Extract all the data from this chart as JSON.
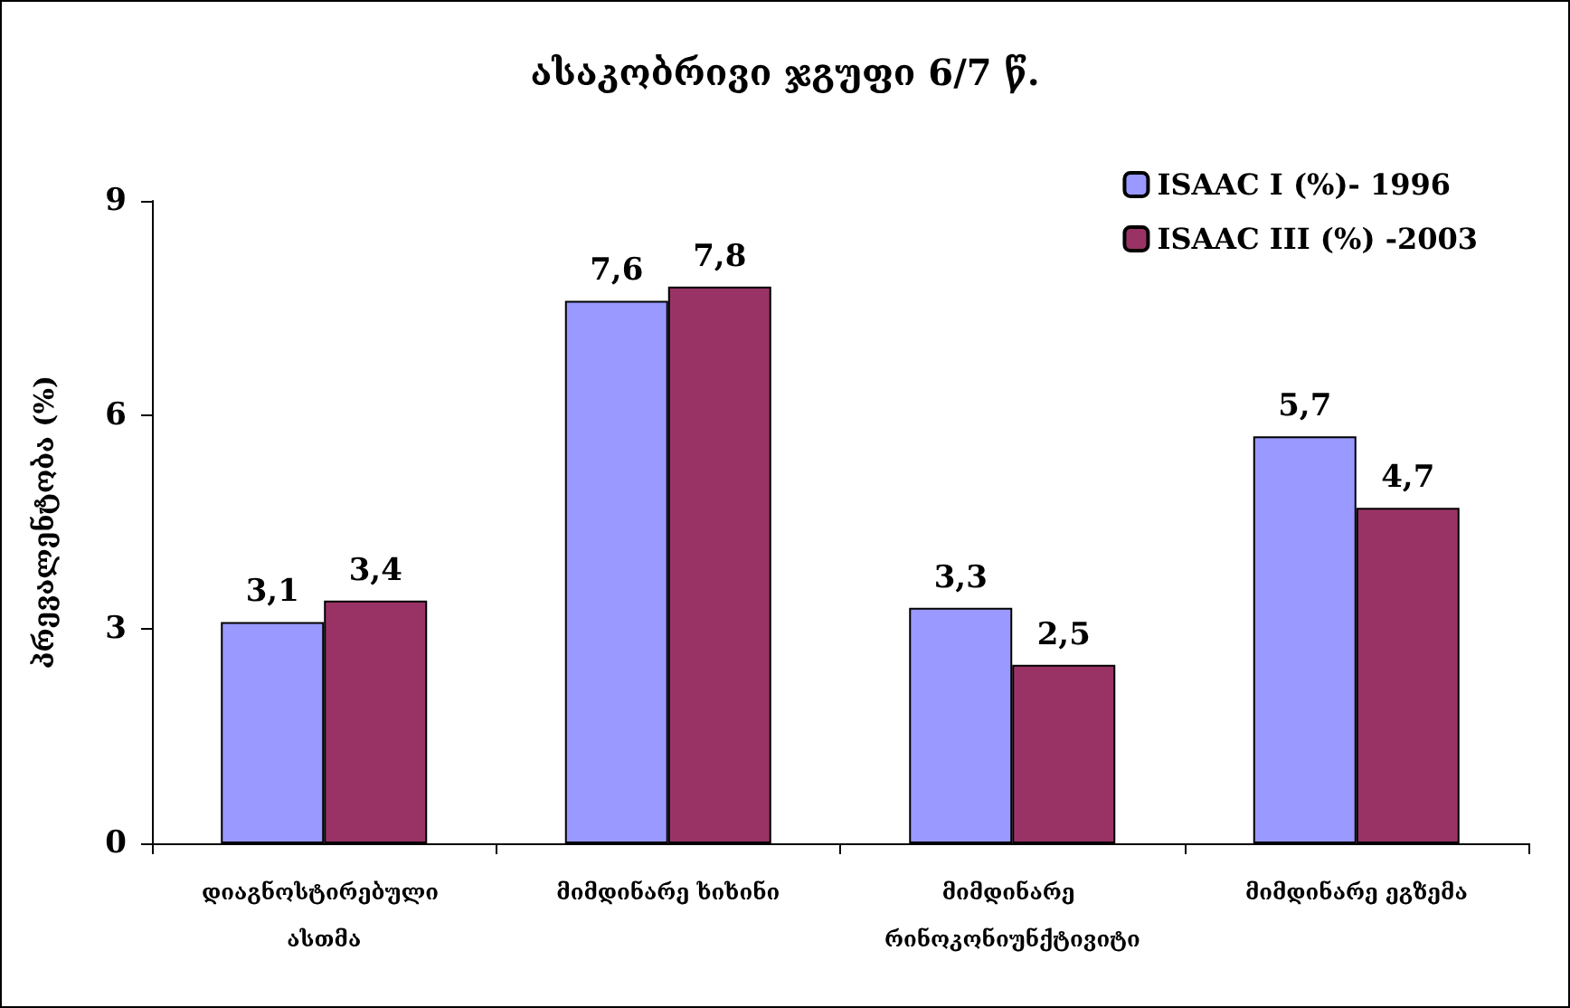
{
  "chart_data": {
    "type": "bar",
    "title": "ასაკობრივი ჯგუფი 6/7 წ.",
    "ylabel": "პრევალენტობა (%)",
    "categories": [
      "დიაგნოსტირებული ასთმა",
      "მიმდინარე ხიხინი",
      "მიმდინარე რინოკონიუნქტივიტი",
      "მიმდინარე ეგზემა"
    ],
    "series": [
      {
        "name": "ISAAC I (%)- 1996",
        "color": "#9999ff",
        "values": [
          3.1,
          7.6,
          3.3,
          5.7
        ],
        "value_labels": [
          "3,1",
          "7,6",
          "3,3",
          "5,7"
        ]
      },
      {
        "name": "ISAAC III (%) -2003",
        "color": "#993366",
        "values": [
          3.4,
          7.8,
          2.5,
          4.7
        ],
        "value_labels": [
          "3,4",
          "7,8",
          "2,5",
          "4,7"
        ]
      }
    ],
    "ylim": [
      0,
      9
    ],
    "yticks": [
      0,
      3,
      6,
      9
    ],
    "grid": false,
    "legend": "top right"
  }
}
